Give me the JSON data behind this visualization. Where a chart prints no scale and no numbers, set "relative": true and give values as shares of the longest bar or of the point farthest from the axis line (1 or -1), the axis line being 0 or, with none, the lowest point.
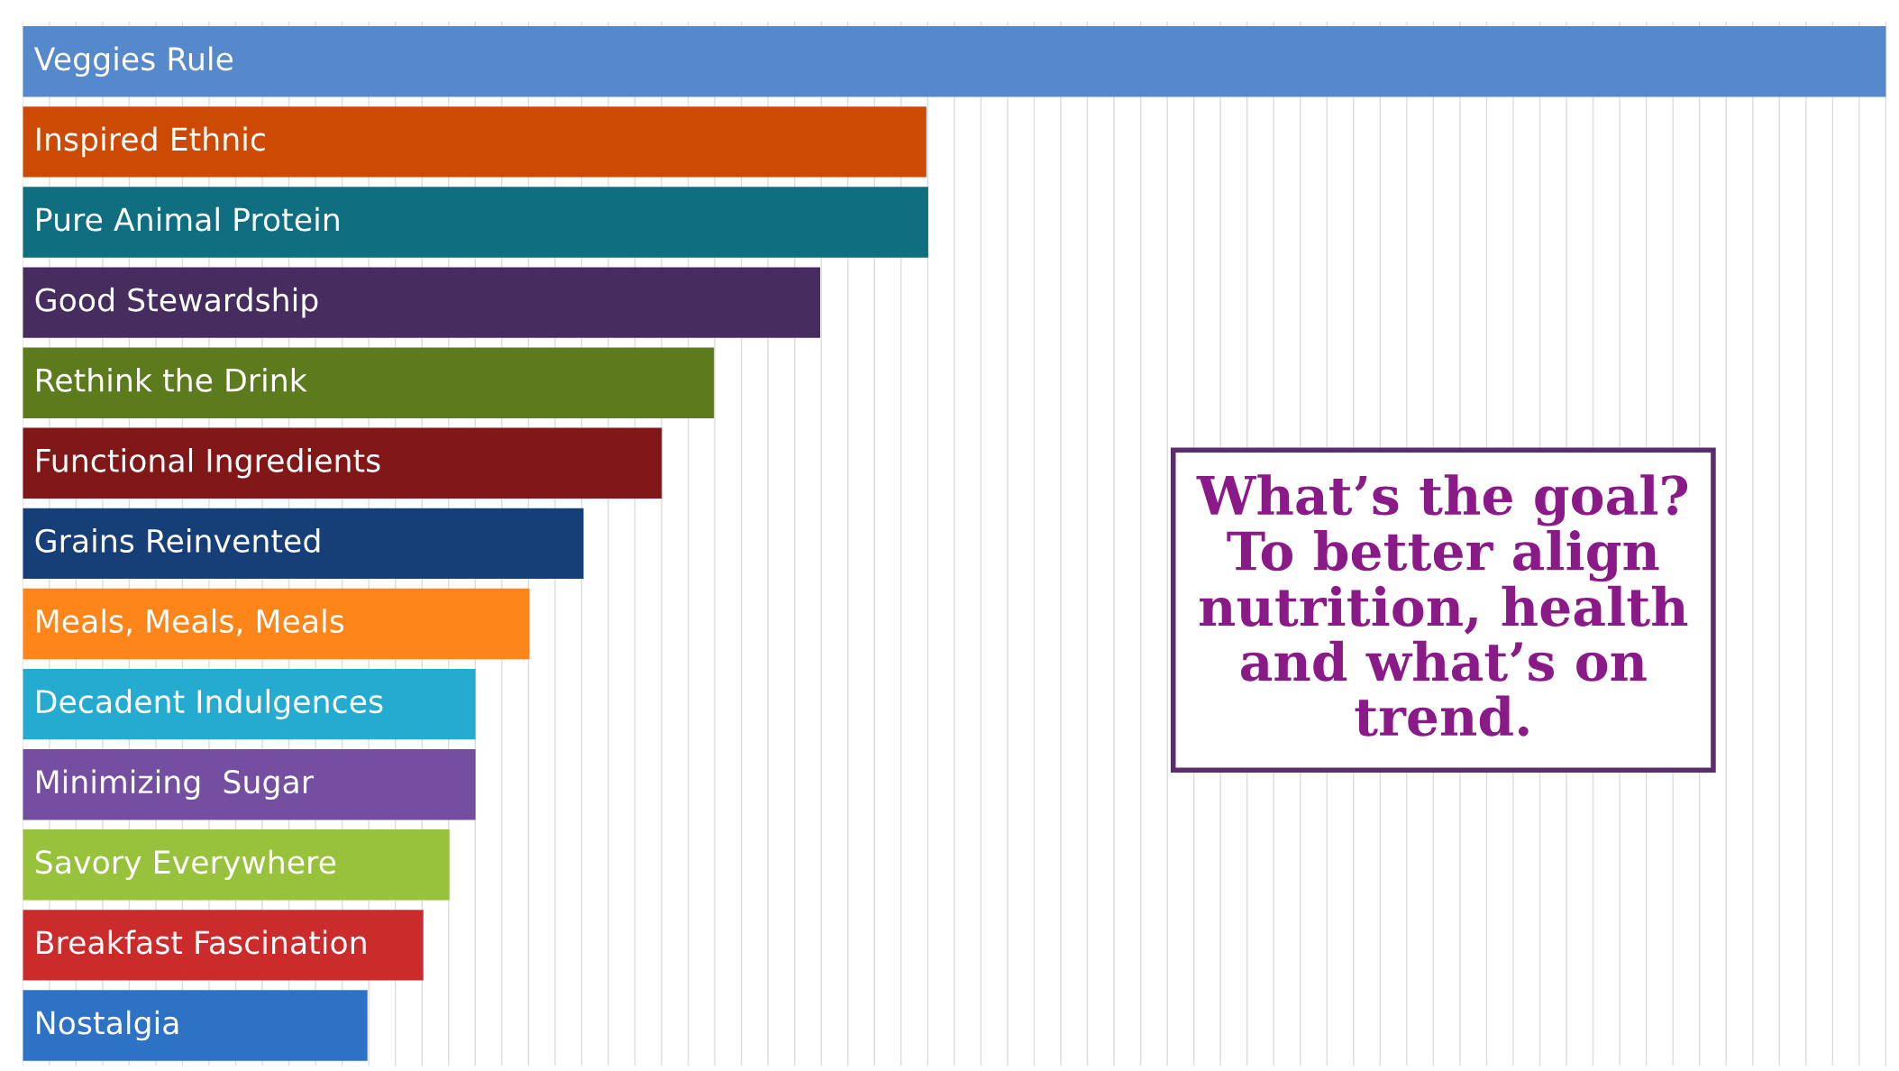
{
  "chart_data": {
    "type": "bar",
    "orientation": "horizontal",
    "relative": true,
    "grid": "x",
    "categories": [
      "Veggies Rule",
      "Inspired Ethnic",
      "Pure Animal Protein",
      "Good Stewardship",
      "Rethink the Drink",
      "Functional Ingredients",
      "Grains Reinvented",
      "Meals, Meals, Meals",
      "Decadent Indulgences",
      "Minimizing  Sugar",
      "Savory Everywhere",
      "Breakfast Fascination",
      "Nostalgia"
    ],
    "values": [
      1,
      0.485,
      0.486,
      0.428,
      0.371,
      0.343,
      0.301,
      0.272,
      0.243,
      0.243,
      0.229,
      0.215,
      0.185
    ],
    "colors": [
      "#5589cb",
      "#cc4a04",
      "#0f6e80",
      "#472c60",
      "#5b7b1d",
      "#811716",
      "#163f77",
      "#fd8519",
      "#25abd0",
      "#744ea0",
      "#98c13c",
      "#cb2b2a",
      "#2e72c6"
    ],
    "annotations": [
      "What’s the goal?\nTo better align\nnutrition, health\nand what’s on\ntrend."
    ]
  }
}
